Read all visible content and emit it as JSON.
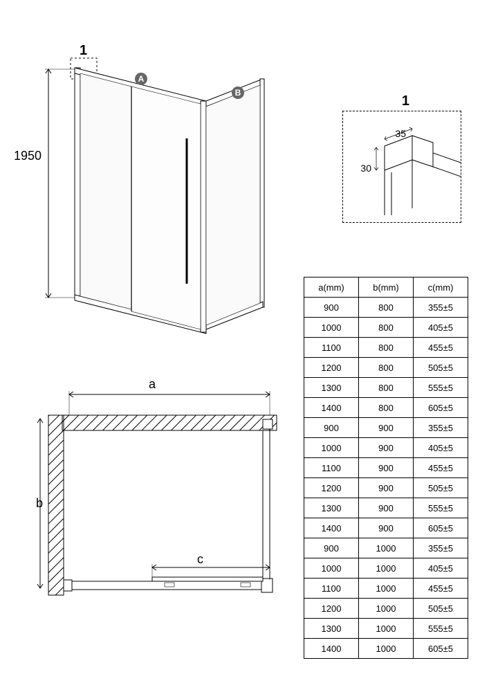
{
  "iso": {
    "height_label": "1950",
    "callout_1": "1",
    "badge_a": "A",
    "badge_b": "B"
  },
  "detail": {
    "label": "1",
    "dim_w": "35",
    "dim_h": "30"
  },
  "plan": {
    "dim_a": "a",
    "dim_b": "b",
    "dim_c": "c"
  },
  "table": {
    "headers": [
      "a(mm)",
      "b(mm)",
      "c(mm)"
    ],
    "rows": [
      [
        "900",
        "800",
        "355±5"
      ],
      [
        "1000",
        "800",
        "405±5"
      ],
      [
        "1100",
        "800",
        "455±5"
      ],
      [
        "1200",
        "800",
        "505±5"
      ],
      [
        "1300",
        "800",
        "555±5"
      ],
      [
        "1400",
        "800",
        "605±5"
      ],
      [
        "900",
        "900",
        "355±5"
      ],
      [
        "1000",
        "900",
        "405±5"
      ],
      [
        "1100",
        "900",
        "455±5"
      ],
      [
        "1200",
        "900",
        "505±5"
      ],
      [
        "1300",
        "900",
        "555±5"
      ],
      [
        "1400",
        "900",
        "605±5"
      ],
      [
        "900",
        "1000",
        "355±5"
      ],
      [
        "1000",
        "1000",
        "405±5"
      ],
      [
        "1100",
        "1000",
        "455±5"
      ],
      [
        "1200",
        "1000",
        "505±5"
      ],
      [
        "1300",
        "1000",
        "555±5"
      ],
      [
        "1400",
        "1000",
        "605±5"
      ]
    ]
  },
  "styling": {
    "stroke_color": "#000000",
    "badge_bg": "#666666",
    "badge_fg": "#ffffff",
    "dashed_border": "#000000",
    "font_family": "Arial",
    "table_border": "#000000"
  }
}
